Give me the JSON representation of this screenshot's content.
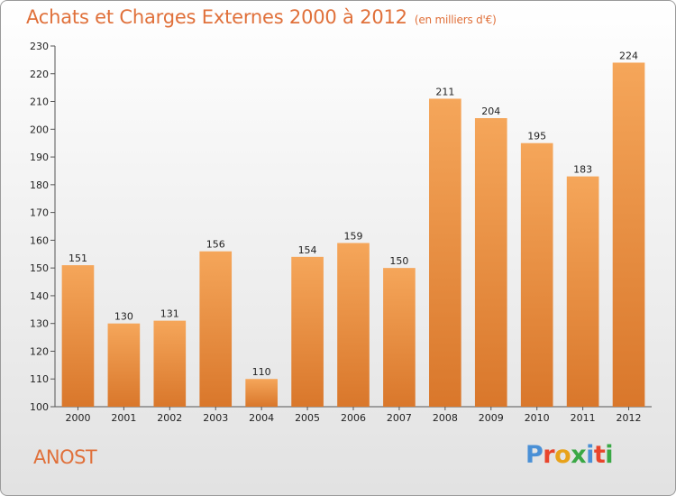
{
  "header": {
    "title": "Achats et Charges Externes 2000 à 2012",
    "subtitle": "(en milliers d'€)"
  },
  "footer": {
    "commune": "ANOST",
    "logo_text": "Proxiti",
    "logo_colors": [
      "#4a90d6",
      "#e8452c",
      "#e8a21a",
      "#3aa845",
      "#4a90d6",
      "#e8452c",
      "#3aa845"
    ]
  },
  "colors": {
    "bar_light": "#f5a65a",
    "bar_dark": "#d9772b",
    "title": "#e0703a"
  },
  "chart_data": {
    "type": "bar",
    "title": "Achats et Charges Externes 2000 à 2012",
    "categories": [
      "2000",
      "2001",
      "2002",
      "2003",
      "2004",
      "2005",
      "2006",
      "2007",
      "2008",
      "2009",
      "2010",
      "2011",
      "2012"
    ],
    "values": [
      151,
      130,
      131,
      156,
      110,
      154,
      159,
      150,
      211,
      204,
      195,
      183,
      224
    ],
    "ylim": [
      100,
      230
    ],
    "yticks": [
      100,
      110,
      120,
      130,
      140,
      150,
      160,
      170,
      180,
      190,
      200,
      210,
      220,
      230
    ],
    "grid": false,
    "data_labels": true
  }
}
